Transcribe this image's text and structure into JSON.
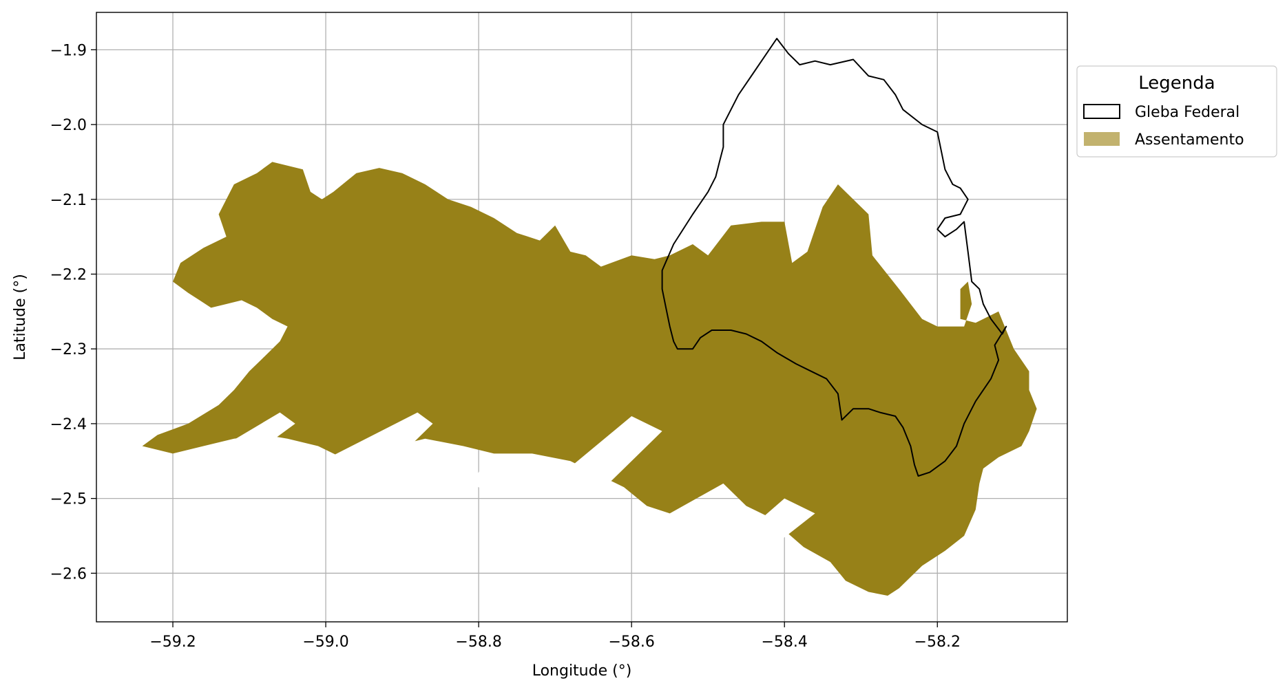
{
  "chart_data": {
    "type": "map",
    "xlabel": "Longitude (°)",
    "ylabel": "Latitude (°)",
    "xlim": [
      -59.3,
      -58.03
    ],
    "ylim": [
      -2.665,
      -1.85
    ],
    "x_ticks": [
      -59.2,
      -59.0,
      -58.8,
      -58.6,
      -58.4,
      -58.2
    ],
    "y_ticks": [
      -1.9,
      -2.0,
      -2.1,
      -2.2,
      -2.3,
      -2.4,
      -2.5,
      -2.6
    ],
    "x_tick_labels": [
      "−59.2",
      "−59.0",
      "−58.8",
      "−58.6",
      "−58.4",
      "−58.2"
    ],
    "y_tick_labels": [
      "−1.9",
      "−2.0",
      "−2.1",
      "−2.2",
      "−2.3",
      "−2.4",
      "−2.5",
      "−2.6"
    ],
    "grid": true,
    "legend": {
      "title": "Legenda",
      "placement": "outside-right-top",
      "entries": [
        {
          "label": "Gleba Federal",
          "style": "outline",
          "color": "#000000"
        },
        {
          "label": "Assentamento",
          "style": "fill",
          "color": "#c2b26e"
        }
      ]
    },
    "colors": {
      "assentamento": "#978118",
      "gleba_outline": "#000000",
      "grid": "#b0b0b0"
    },
    "layers": {
      "assentamento": [
        [
          -59.24,
          -2.43
        ],
        [
          -59.22,
          -2.415
        ],
        [
          -59.18,
          -2.4
        ],
        [
          -59.14,
          -2.375
        ],
        [
          -59.12,
          -2.355
        ],
        [
          -59.1,
          -2.33
        ],
        [
          -59.08,
          -2.31
        ],
        [
          -59.06,
          -2.29
        ],
        [
          -59.05,
          -2.27
        ],
        [
          -59.07,
          -2.26
        ],
        [
          -59.09,
          -2.245
        ],
        [
          -59.11,
          -2.235
        ],
        [
          -59.13,
          -2.24
        ],
        [
          -59.15,
          -2.245
        ],
        [
          -59.165,
          -2.235
        ],
        [
          -59.18,
          -2.225
        ],
        [
          -59.2,
          -2.21
        ],
        [
          -59.19,
          -2.185
        ],
        [
          -59.16,
          -2.165
        ],
        [
          -59.13,
          -2.15
        ],
        [
          -59.14,
          -2.12
        ],
        [
          -59.12,
          -2.08
        ],
        [
          -59.09,
          -2.065
        ],
        [
          -59.07,
          -2.05
        ],
        [
          -59.03,
          -2.06
        ],
        [
          -59.02,
          -2.09
        ],
        [
          -59.005,
          -2.1
        ],
        [
          -58.99,
          -2.09
        ],
        [
          -58.96,
          -2.065
        ],
        [
          -58.93,
          -2.058
        ],
        [
          -58.9,
          -2.065
        ],
        [
          -58.87,
          -2.08
        ],
        [
          -58.84,
          -2.1
        ],
        [
          -58.81,
          -2.11
        ],
        [
          -58.78,
          -2.125
        ],
        [
          -58.75,
          -2.145
        ],
        [
          -58.72,
          -2.155
        ],
        [
          -58.7,
          -2.135
        ],
        [
          -58.68,
          -2.17
        ],
        [
          -58.66,
          -2.175
        ],
        [
          -58.64,
          -2.19
        ],
        [
          -58.6,
          -2.175
        ],
        [
          -58.57,
          -2.18
        ],
        [
          -58.55,
          -2.175
        ],
        [
          -58.52,
          -2.16
        ],
        [
          -58.5,
          -2.175
        ],
        [
          -58.47,
          -2.135
        ],
        [
          -58.43,
          -2.13
        ],
        [
          -58.4,
          -2.13
        ],
        [
          -58.39,
          -2.185
        ],
        [
          -58.37,
          -2.17
        ],
        [
          -58.35,
          -2.11
        ],
        [
          -58.33,
          -2.08
        ],
        [
          -58.31,
          -2.1
        ],
        [
          -58.29,
          -2.12
        ],
        [
          -58.285,
          -2.175
        ],
        [
          -58.25,
          -2.22
        ],
        [
          -58.22,
          -2.26
        ],
        [
          -58.2,
          -2.27
        ],
        [
          -58.18,
          -2.27
        ],
        [
          -58.165,
          -2.27
        ],
        [
          -58.155,
          -2.24
        ],
        [
          -58.16,
          -2.21
        ],
        [
          -58.17,
          -2.22
        ],
        [
          -58.17,
          -2.26
        ],
        [
          -58.15,
          -2.265
        ],
        [
          -58.12,
          -2.25
        ],
        [
          -58.1,
          -2.3
        ],
        [
          -58.08,
          -2.33
        ],
        [
          -58.08,
          -2.355
        ],
        [
          -58.07,
          -2.38
        ],
        [
          -58.08,
          -2.41
        ],
        [
          -58.09,
          -2.43
        ],
        [
          -58.12,
          -2.445
        ],
        [
          -58.14,
          -2.46
        ],
        [
          -58.145,
          -2.48
        ],
        [
          -58.15,
          -2.515
        ],
        [
          -58.165,
          -2.55
        ],
        [
          -58.19,
          -2.57
        ],
        [
          -58.22,
          -2.59
        ],
        [
          -58.25,
          -2.62
        ],
        [
          -58.265,
          -2.63
        ],
        [
          -58.29,
          -2.625
        ],
        [
          -58.32,
          -2.61
        ],
        [
          -58.34,
          -2.585
        ],
        [
          -58.375,
          -2.565
        ],
        [
          -58.42,
          -2.525
        ],
        [
          -58.45,
          -2.51
        ],
        [
          -58.48,
          -2.48
        ],
        [
          -58.515,
          -2.5
        ],
        [
          -58.55,
          -2.52
        ],
        [
          -58.58,
          -2.51
        ],
        [
          -58.61,
          -2.485
        ],
        [
          -58.64,
          -2.47
        ],
        [
          -58.68,
          -2.45
        ],
        [
          -58.73,
          -2.44
        ],
        [
          -58.78,
          -2.44
        ],
        [
          -58.82,
          -2.43
        ],
        [
          -58.87,
          -2.42
        ],
        [
          -58.91,
          -2.43
        ],
        [
          -58.95,
          -2.44
        ],
        [
          -58.98,
          -2.445
        ],
        [
          -59.01,
          -2.43
        ],
        [
          -59.05,
          -2.42
        ],
        [
          -59.08,
          -2.415
        ],
        [
          -59.12,
          -2.42
        ],
        [
          -59.16,
          -2.43
        ],
        [
          -59.2,
          -2.44
        ],
        [
          -59.24,
          -2.43
        ]
      ],
      "assentamento_notches": [
        [
          [
            -59.175,
            -2.455
          ],
          [
            -59.06,
            -2.385
          ],
          [
            -59.04,
            -2.4
          ],
          [
            -59.08,
            -2.43
          ],
          [
            -59.15,
            -2.47
          ]
        ],
        [
          [
            -58.995,
            -2.445
          ],
          [
            -58.88,
            -2.385
          ],
          [
            -58.86,
            -2.4
          ],
          [
            -58.91,
            -2.45
          ]
        ],
        [
          [
            -58.81,
            -2.48
          ],
          [
            -58.79,
            -2.45
          ],
          [
            -58.76,
            -2.46
          ],
          [
            -58.79,
            -2.49
          ]
        ],
        [
          [
            -58.7,
            -2.475
          ],
          [
            -58.6,
            -2.39
          ],
          [
            -58.56,
            -2.41
          ],
          [
            -58.63,
            -2.48
          ]
        ],
        [
          [
            -58.445,
            -2.54
          ],
          [
            -58.4,
            -2.5
          ],
          [
            -58.36,
            -2.52
          ],
          [
            -58.41,
            -2.56
          ]
        ]
      ],
      "gleba_federal": [
        [
          -58.41,
          -1.885
        ],
        [
          -58.395,
          -1.905
        ],
        [
          -58.38,
          -1.92
        ],
        [
          -58.36,
          -1.915
        ],
        [
          -58.34,
          -1.92
        ],
        [
          -58.31,
          -1.913
        ],
        [
          -58.29,
          -1.935
        ],
        [
          -58.27,
          -1.94
        ],
        [
          -58.255,
          -1.96
        ],
        [
          -58.245,
          -1.98
        ],
        [
          -58.22,
          -2.0
        ],
        [
          -58.2,
          -2.01
        ],
        [
          -58.19,
          -2.06
        ],
        [
          -58.18,
          -2.08
        ],
        [
          -58.17,
          -2.085
        ],
        [
          -58.16,
          -2.1
        ],
        [
          -58.17,
          -2.12
        ],
        [
          -58.19,
          -2.125
        ],
        [
          -58.2,
          -2.14
        ],
        [
          -58.19,
          -2.15
        ],
        [
          -58.175,
          -2.14
        ],
        [
          -58.165,
          -2.13
        ],
        [
          -58.16,
          -2.17
        ],
        [
          -58.155,
          -2.21
        ],
        [
          -58.145,
          -2.22
        ],
        [
          -58.14,
          -2.24
        ],
        [
          -58.13,
          -2.26
        ],
        [
          -58.115,
          -2.28
        ],
        [
          -58.11,
          -2.27
        ],
        [
          -58.125,
          -2.295
        ],
        [
          -58.12,
          -2.315
        ],
        [
          -58.13,
          -2.34
        ],
        [
          -58.15,
          -2.37
        ],
        [
          -58.165,
          -2.4
        ],
        [
          -58.175,
          -2.43
        ],
        [
          -58.19,
          -2.45
        ],
        [
          -58.21,
          -2.465
        ],
        [
          -58.225,
          -2.47
        ],
        [
          -58.23,
          -2.455
        ],
        [
          -58.235,
          -2.43
        ],
        [
          -58.245,
          -2.405
        ],
        [
          -58.255,
          -2.39
        ],
        [
          -58.275,
          -2.385
        ],
        [
          -58.29,
          -2.38
        ],
        [
          -58.31,
          -2.38
        ],
        [
          -58.325,
          -2.395
        ],
        [
          -58.33,
          -2.36
        ],
        [
          -58.345,
          -2.34
        ],
        [
          -58.365,
          -2.33
        ],
        [
          -58.385,
          -2.32
        ],
        [
          -58.41,
          -2.305
        ],
        [
          -58.43,
          -2.29
        ],
        [
          -58.45,
          -2.28
        ],
        [
          -58.47,
          -2.275
        ],
        [
          -58.495,
          -2.275
        ],
        [
          -58.51,
          -2.285
        ],
        [
          -58.52,
          -2.3
        ],
        [
          -58.54,
          -2.3
        ],
        [
          -58.545,
          -2.29
        ],
        [
          -58.55,
          -2.27
        ],
        [
          -58.555,
          -2.245
        ],
        [
          -58.56,
          -2.22
        ],
        [
          -58.56,
          -2.195
        ],
        [
          -58.545,
          -2.16
        ],
        [
          -58.52,
          -2.12
        ],
        [
          -58.5,
          -2.09
        ],
        [
          -58.49,
          -2.07
        ],
        [
          -58.485,
          -2.05
        ],
        [
          -58.48,
          -2.03
        ],
        [
          -58.48,
          -2.0
        ],
        [
          -58.46,
          -1.96
        ],
        [
          -58.44,
          -1.93
        ],
        [
          -58.41,
          -1.885
        ]
      ]
    }
  }
}
